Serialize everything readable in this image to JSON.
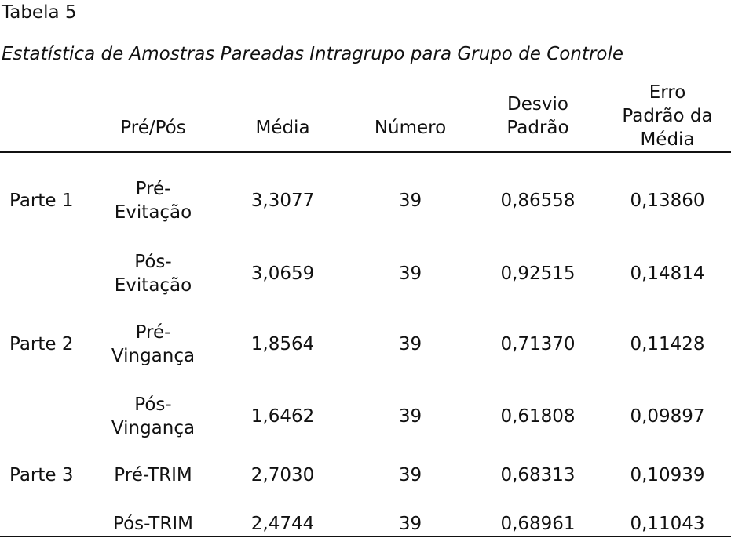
{
  "caption": {
    "number": "Tabela 5",
    "title": "Estatística de Amostras Pareadas Intragrupo para Grupo de Controle"
  },
  "table": {
    "headers": {
      "prepos": "Pré/Pós",
      "media": "Média",
      "numero": "Número",
      "desvio_line1": "Desvio",
      "desvio_line2": "Padrão",
      "erro_line1": "Erro",
      "erro_line2": "Padrão da",
      "erro_line3": "Média"
    },
    "rows": [
      {
        "part": "Parte 1",
        "prepos_line1": "Pré-",
        "prepos_line2": "Evitação",
        "media": "3,3077",
        "numero": "39",
        "desvio": "0,86558",
        "erro": "0,13860"
      },
      {
        "part": "",
        "prepos_line1": "Pós-",
        "prepos_line2": "Evitação",
        "media": "3,0659",
        "numero": "39",
        "desvio": "0,92515",
        "erro": "0,14814"
      },
      {
        "part": "Parte 2",
        "prepos_line1": "Pré-",
        "prepos_line2": "Vingança",
        "media": "1,8564",
        "numero": "39",
        "desvio": "0,71370",
        "erro": "0,11428"
      },
      {
        "part": "",
        "prepos_line1": "Pós-",
        "prepos_line2": "Vingança",
        "media": "1,6462",
        "numero": "39",
        "desvio": "0,61808",
        "erro": "0,09897"
      },
      {
        "part": "Parte 3",
        "prepos_line1": "Pré-TRIM",
        "prepos_line2": "",
        "media": "2,7030",
        "numero": "39",
        "desvio": "0,68313",
        "erro": "0,10939"
      },
      {
        "part": "",
        "prepos_line1": "Pós-TRIM",
        "prepos_line2": "",
        "media": "2,4744",
        "numero": "39",
        "desvio": "0,68961",
        "erro": "0,11043"
      }
    ]
  }
}
